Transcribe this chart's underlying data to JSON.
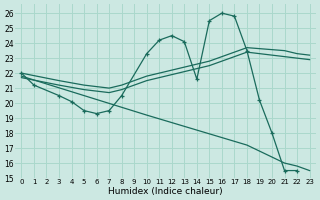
{
  "bg_color": "#cce8e2",
  "grid_color": "#aad8cc",
  "line_color": "#1a6b5c",
  "xlabel": "Humidex (Indice chaleur)",
  "xlim": [
    -0.5,
    23.5
  ],
  "ylim": [
    15,
    26.6
  ],
  "yticks": [
    15,
    16,
    17,
    18,
    19,
    20,
    21,
    22,
    23,
    24,
    25,
    26
  ],
  "xticks": [
    0,
    1,
    2,
    3,
    4,
    5,
    6,
    7,
    8,
    9,
    10,
    11,
    12,
    13,
    14,
    15,
    16,
    17,
    18,
    19,
    20,
    21,
    22,
    23
  ],
  "zigzag_x": [
    0,
    1,
    3,
    4,
    5,
    6,
    7,
    8,
    10,
    11,
    12,
    13,
    14,
    15,
    16,
    17,
    18,
    19,
    20,
    21,
    22
  ],
  "zigzag_y": [
    22.0,
    21.2,
    20.5,
    20.1,
    19.5,
    19.3,
    19.5,
    20.5,
    23.3,
    24.2,
    24.5,
    24.1,
    21.6,
    25.5,
    26.0,
    25.8,
    23.5,
    20.2,
    18.0,
    15.5,
    15.5
  ],
  "diag_down_x": [
    0,
    5,
    10,
    14,
    18,
    21,
    22,
    23
  ],
  "diag_down_y": [
    21.8,
    20.5,
    19.2,
    18.2,
    17.2,
    16.0,
    15.8,
    15.5
  ],
  "diag_up1_x": [
    0,
    3,
    5,
    7,
    8,
    10,
    12,
    14,
    15,
    16,
    17,
    18,
    21,
    22,
    23
  ],
  "diag_up1_y": [
    22.0,
    21.5,
    21.2,
    21.0,
    21.2,
    21.8,
    22.2,
    22.6,
    22.8,
    23.1,
    23.4,
    23.7,
    23.5,
    23.3,
    23.2
  ],
  "diag_up2_x": [
    0,
    3,
    5,
    7,
    8,
    10,
    12,
    14,
    15,
    16,
    17,
    18,
    21,
    22,
    23
  ],
  "diag_up2_y": [
    21.7,
    21.2,
    20.9,
    20.7,
    20.9,
    21.5,
    21.9,
    22.3,
    22.5,
    22.8,
    23.1,
    23.4,
    23.1,
    23.0,
    22.9
  ]
}
